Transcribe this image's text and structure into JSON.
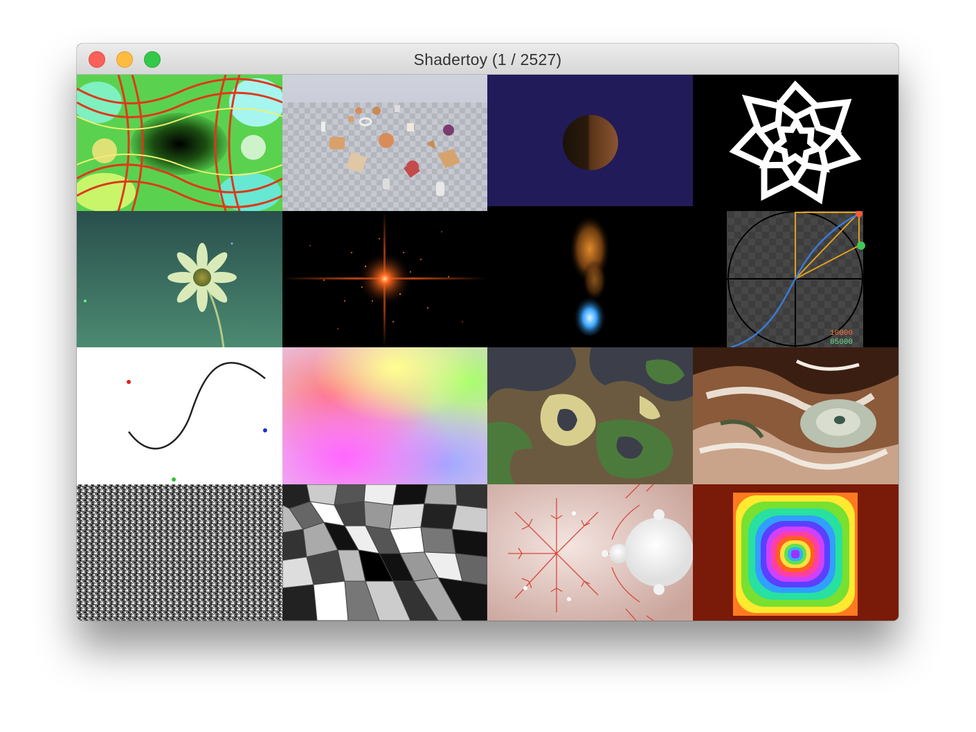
{
  "window": {
    "title": "Shadertoy (1 / 2527)",
    "controls": [
      "close-icon",
      "minimize-icon",
      "maximize-icon"
    ]
  },
  "colors": {
    "close": "#fc605b",
    "minimize": "#fdbc40",
    "maximize": "#34c84a",
    "titlebar": "#e3e3e3"
  },
  "shaders": [
    {
      "icon": "psychedelic-plasma-icon"
    },
    {
      "icon": "raymarched-primitives-icon"
    },
    {
      "icon": "planet-sphere-icon"
    },
    {
      "icon": "spiral-star-icon"
    },
    {
      "icon": "flower-icon"
    },
    {
      "icon": "starfield-glow-icon"
    },
    {
      "icon": "fire-smoke-icon"
    },
    {
      "icon": "unit-circle-plot-icon",
      "readout_top": "10000",
      "readout_bottom": "05000"
    },
    {
      "icon": "bezier-curve-icon"
    },
    {
      "icon": "pastel-gradient-icon"
    },
    {
      "icon": "camouflage-icon"
    },
    {
      "icon": "marble-swirl-icon"
    },
    {
      "icon": "white-noise-icon"
    },
    {
      "icon": "voronoi-cells-icon"
    },
    {
      "icon": "mandelbrot-fractal-icon"
    },
    {
      "icon": "rainbow-rings-icon"
    }
  ]
}
